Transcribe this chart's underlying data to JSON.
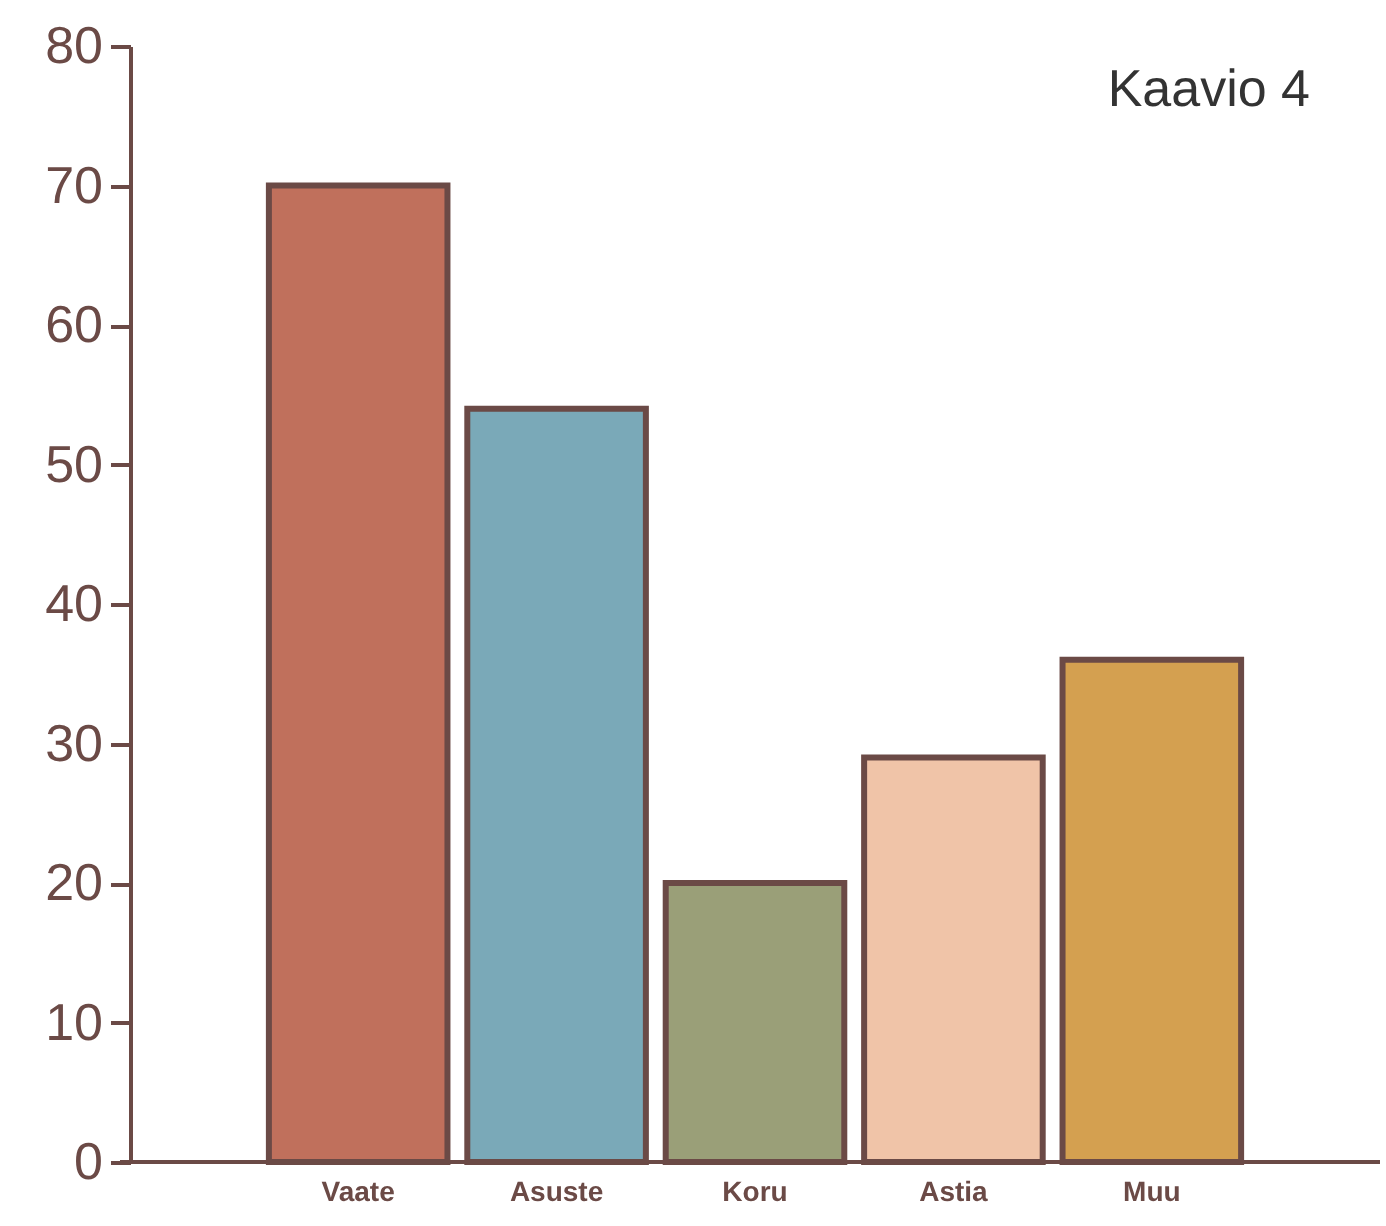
{
  "chart_data": {
    "type": "bar",
    "title": "Kaavio 4",
    "categories": [
      "Vaate",
      "Asuste",
      "Koru",
      "Astia",
      "Muu"
    ],
    "values": [
      70,
      54,
      20,
      29,
      36
    ],
    "colors": [
      "#c0705c",
      "#7aa9b8",
      "#9a9f78",
      "#f0c4a8",
      "#d4a050"
    ],
    "ylim": [
      0,
      80
    ],
    "yticks": [
      0,
      10,
      20,
      30,
      40,
      50,
      60,
      70,
      80
    ],
    "grid": false
  }
}
